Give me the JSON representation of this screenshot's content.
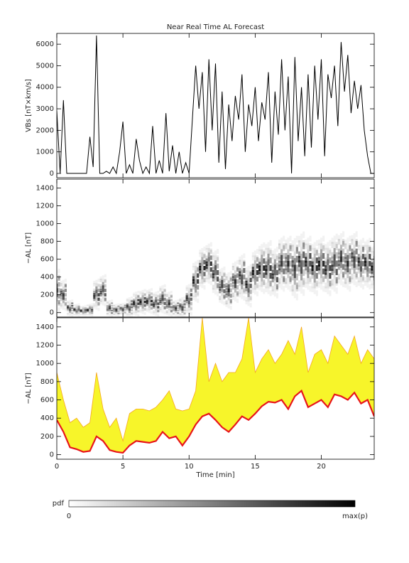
{
  "chart_data": [
    {
      "type": "line",
      "title": "Near Real Time AL Forecast",
      "y_label": "VBs [nT×km/s]",
      "xlim": [
        0,
        24
      ],
      "xticks": [
        0,
        5,
        10,
        15,
        20
      ],
      "show_xtick_labels": false,
      "ylim": [
        -200,
        6500
      ],
      "yticks": [
        0,
        1000,
        2000,
        3000,
        4000,
        5000,
        6000
      ],
      "x": [
        0,
        0.25,
        0.5,
        0.75,
        1,
        1.25,
        1.5,
        1.75,
        2,
        2.25,
        2.5,
        2.75,
        3,
        3.25,
        3.5,
        3.75,
        4,
        4.25,
        4.5,
        4.75,
        5,
        5.25,
        5.5,
        5.75,
        6,
        6.25,
        6.5,
        6.75,
        7,
        7.25,
        7.5,
        7.75,
        8,
        8.25,
        8.5,
        8.75,
        9,
        9.25,
        9.5,
        9.75,
        10,
        10.25,
        10.5,
        10.75,
        11,
        11.25,
        11.5,
        11.75,
        12,
        12.25,
        12.5,
        12.75,
        13,
        13.25,
        13.5,
        13.75,
        14,
        14.25,
        14.5,
        14.75,
        15,
        15.25,
        15.5,
        15.75,
        16,
        16.25,
        16.5,
        16.75,
        17,
        17.25,
        17.5,
        17.75,
        18,
        18.25,
        18.5,
        18.75,
        19,
        19.25,
        19.5,
        19.75,
        20,
        20.25,
        20.5,
        20.75,
        21,
        21.25,
        21.5,
        21.75,
        22,
        22.25,
        22.5,
        22.75,
        23,
        23.25,
        23.5,
        23.75,
        24
      ],
      "series": [
        {
          "color": "#000000",
          "values": [
            2900,
            0,
            3400,
            0,
            0,
            0,
            0,
            0,
            0,
            0,
            1700,
            300,
            6400,
            0,
            0,
            100,
            0,
            300,
            0,
            1000,
            2400,
            0,
            400,
            0,
            1600,
            600,
            0,
            300,
            0,
            2200,
            0,
            600,
            0,
            2800,
            100,
            1300,
            0,
            1000,
            0,
            500,
            0,
            2500,
            5000,
            3000,
            4700,
            1000,
            5300,
            2000,
            5100,
            500,
            3800,
            200,
            3200,
            1500,
            3600,
            2500,
            4600,
            1000,
            3200,
            2200,
            4000,
            1500,
            3300,
            2500,
            4700,
            500,
            3800,
            1800,
            5300,
            2000,
            4500,
            0,
            5400,
            1500,
            4000,
            800,
            4600,
            1200,
            5000,
            2500,
            5300,
            800,
            4600,
            3500,
            5000,
            2200,
            6100,
            3800,
            5500,
            2800,
            4300,
            3000,
            4100,
            2000,
            800,
            0,
            0
          ]
        }
      ]
    },
    {
      "type": "density",
      "y_label": "−AL [nT]",
      "xlim": [
        0,
        24
      ],
      "xticks": [
        0,
        5,
        10,
        15,
        20
      ],
      "show_xtick_labels": false,
      "ylim": [
        -50,
        1500
      ],
      "yticks": [
        0,
        200,
        400,
        600,
        800,
        1000,
        1200,
        1400
      ],
      "x": [
        0,
        0.5,
        1,
        1.5,
        2,
        2.5,
        3,
        3.5,
        4,
        4.5,
        5,
        5.5,
        6,
        6.5,
        7,
        7.5,
        8,
        8.5,
        9,
        9.5,
        10,
        10.5,
        11,
        11.5,
        12,
        12.5,
        13,
        13.5,
        14,
        14.5,
        15,
        15.5,
        16,
        16.5,
        17,
        17.5,
        18,
        18.5,
        19,
        19.5,
        20,
        20.5,
        21,
        21.5,
        22,
        22.5,
        23,
        23.5,
        24
      ],
      "center": [
        250,
        200,
        50,
        30,
        20,
        30,
        200,
        250,
        50,
        30,
        40,
        60,
        100,
        120,
        130,
        100,
        150,
        100,
        50,
        60,
        150,
        350,
        500,
        550,
        450,
        300,
        250,
        350,
        400,
        300,
        450,
        500,
        500,
        450,
        550,
        550,
        500,
        550,
        550,
        500,
        550,
        500,
        550,
        600,
        550,
        600,
        550,
        550,
        500
      ],
      "spread": [
        200,
        150,
        80,
        60,
        50,
        60,
        150,
        150,
        80,
        60,
        60,
        100,
        120,
        120,
        120,
        120,
        140,
        120,
        80,
        100,
        150,
        200,
        200,
        200,
        220,
        180,
        180,
        200,
        220,
        200,
        220,
        240,
        260,
        240,
        260,
        260,
        300,
        300,
        260,
        260,
        260,
        260,
        280,
        260,
        260,
        260,
        240,
        240,
        220
      ]
    },
    {
      "type": "band",
      "y_label": "−AL [nT]",
      "x_label": "Time [min]",
      "xlim": [
        0,
        24
      ],
      "xticks": [
        0,
        5,
        10,
        15,
        20
      ],
      "show_xtick_labels": true,
      "ylim": [
        -50,
        1500
      ],
      "yticks": [
        0,
        200,
        400,
        600,
        800,
        1000,
        1200,
        1400
      ],
      "band_color": "#f7f52a",
      "x": [
        0,
        0.5,
        1,
        1.5,
        2,
        2.5,
        3,
        3.5,
        4,
        4.5,
        5,
        5.5,
        6,
        6.5,
        7,
        7.5,
        8,
        8.5,
        9,
        9.5,
        10,
        10.5,
        11,
        11.5,
        12,
        12.5,
        13,
        13.5,
        14,
        14.5,
        15,
        15.5,
        16,
        16.5,
        17,
        17.5,
        18,
        18.5,
        19,
        19.5,
        20,
        20.5,
        21,
        21.5,
        22,
        22.5,
        23,
        23.5,
        24
      ],
      "series": [
        {
          "color": "#e8141a",
          "values": [
            380,
            250,
            80,
            60,
            30,
            40,
            200,
            150,
            50,
            30,
            20,
            100,
            150,
            140,
            130,
            150,
            250,
            180,
            200,
            100,
            200,
            330,
            420,
            450,
            380,
            300,
            250,
            330,
            420,
            380,
            450,
            530,
            580,
            570,
            600,
            500,
            640,
            700,
            520,
            560,
            600,
            520,
            660,
            640,
            600,
            680,
            560,
            600,
            420
          ]
        },
        {
          "color": "#f5a623",
          "values": [
            900,
            600,
            350,
            400,
            300,
            350,
            900,
            500,
            300,
            400,
            150,
            450,
            500,
            500,
            480,
            520,
            600,
            700,
            500,
            480,
            500,
            700,
            1500,
            800,
            1000,
            800,
            900,
            900,
            1050,
            1500,
            900,
            1050,
            1150,
            1000,
            1100,
            1250,
            1100,
            1400,
            900,
            1100,
            1150,
            1000,
            1300,
            1200,
            1100,
            1300,
            1000,
            1150,
            1050
          ]
        }
      ]
    }
  ],
  "colorbar": {
    "label": "pdf",
    "min_label": "0",
    "max_label": "max(p)"
  }
}
